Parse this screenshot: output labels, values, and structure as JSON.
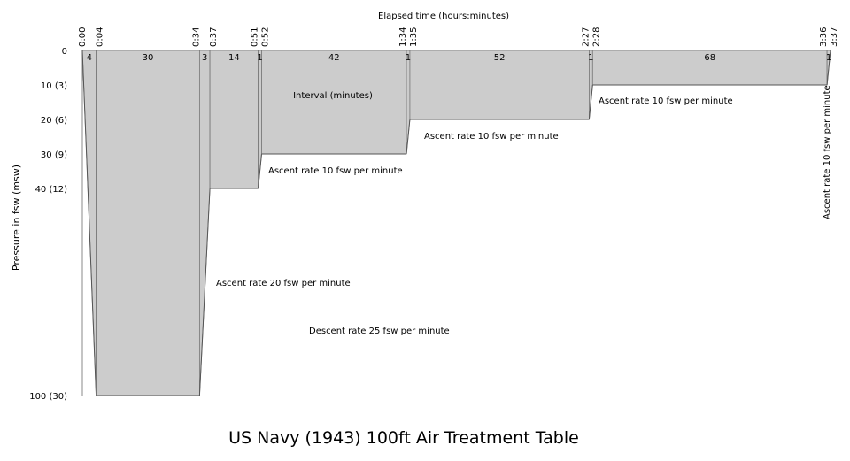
{
  "chart_data": {
    "type": "area",
    "title": "US Navy (1943) 100ft Air Treatment Table",
    "xlabel": "Elapsed time (hours:minutes)",
    "ylabel": "Pressure in fsw (msw)",
    "xlim": [
      0,
      217
    ],
    "ylim": [
      100,
      0
    ],
    "y_ticks": [
      {
        "value": 0,
        "label": "0"
      },
      {
        "value": 10,
        "label": "10 (3)"
      },
      {
        "value": 20,
        "label": "20 (6)"
      },
      {
        "value": 30,
        "label": "30 (9)"
      },
      {
        "value": 40,
        "label": "40 (12)"
      },
      {
        "value": 100,
        "label": "100 (30)"
      }
    ],
    "profile": [
      {
        "time_min": 0,
        "time_label": "0:00",
        "depth_fsw": 0
      },
      {
        "time_min": 4,
        "time_label": "0:04",
        "depth_fsw": 100
      },
      {
        "time_min": 34,
        "time_label": "0:34",
        "depth_fsw": 100
      },
      {
        "time_min": 37,
        "time_label": "0:37",
        "depth_fsw": 40
      },
      {
        "time_min": 51,
        "time_label": "0:51",
        "depth_fsw": 40
      },
      {
        "time_min": 52,
        "time_label": "0:52",
        "depth_fsw": 30
      },
      {
        "time_min": 94,
        "time_label": "1:34",
        "depth_fsw": 30
      },
      {
        "time_min": 95,
        "time_label": "1:35",
        "depth_fsw": 20
      },
      {
        "time_min": 147,
        "time_label": "2:27",
        "depth_fsw": 20
      },
      {
        "time_min": 148,
        "time_label": "2:28",
        "depth_fsw": 10
      },
      {
        "time_min": 216,
        "time_label": "3:36",
        "depth_fsw": 10
      },
      {
        "time_min": 217,
        "time_label": "3:37",
        "depth_fsw": 0
      }
    ],
    "intervals": [
      "4",
      "30",
      "3",
      "14",
      "1",
      "42",
      "1",
      "52",
      "1",
      "68",
      "1"
    ],
    "fill_color": "#cccccc",
    "annotations": [
      {
        "text": "Interval (minutes)"
      },
      {
        "text": "Ascent rate 10 fsw per minute"
      },
      {
        "text": "Ascent rate 10 fsw per minute"
      },
      {
        "text": "Ascent rate 10 fsw per minute"
      },
      {
        "text": "Ascent rate 10 fsw per minute"
      },
      {
        "text": "Ascent rate 20 fsw per minute"
      },
      {
        "text": "Descent rate 25 fsw per minute"
      }
    ]
  }
}
